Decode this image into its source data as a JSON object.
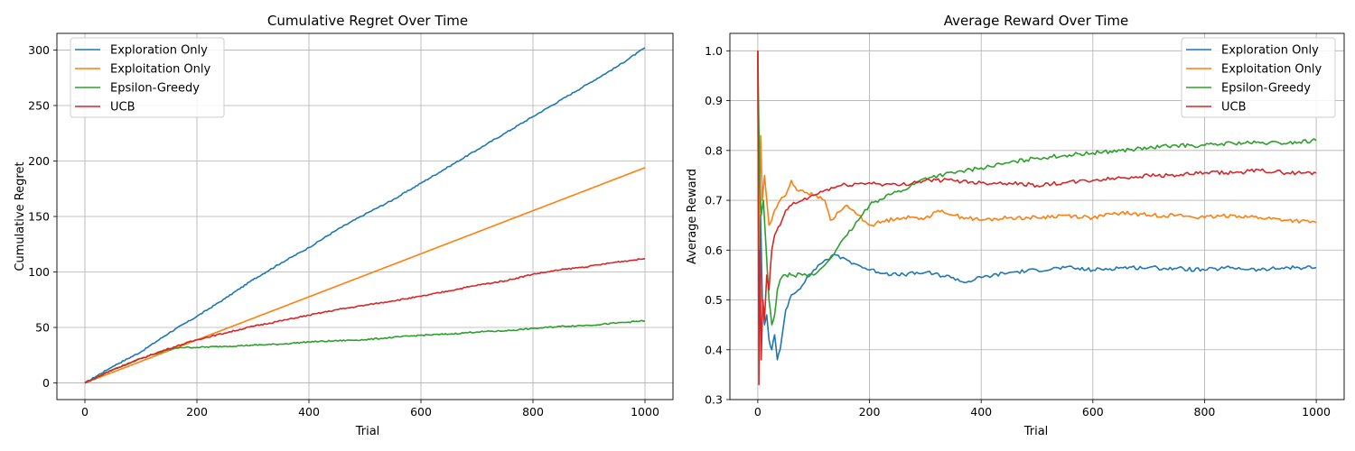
{
  "chart_data": [
    {
      "type": "line",
      "title": "Cumulative Regret Over Time",
      "xlabel": "Trial",
      "ylabel": "Cumulative Regret",
      "xlim": [
        -50,
        1050
      ],
      "ylim": [
        -15,
        315
      ],
      "xticks": [
        0,
        200,
        400,
        600,
        800,
        1000
      ],
      "yticks": [
        0,
        50,
        100,
        150,
        200,
        250,
        300
      ],
      "grid": true,
      "legend_loc": "upper left",
      "noise": 0,
      "series": [
        {
          "name": "Exploration Only",
          "color": "#1f77b4",
          "x": [
            0,
            50,
            100,
            150,
            200,
            250,
            300,
            350,
            400,
            450,
            500,
            550,
            600,
            650,
            700,
            750,
            800,
            850,
            900,
            950,
            1000
          ],
          "y": [
            0,
            15,
            28,
            45,
            60,
            76,
            93,
            108,
            122,
            138,
            152,
            165,
            180,
            195,
            210,
            225,
            240,
            255,
            270,
            285,
            302
          ]
        },
        {
          "name": "Exploitation Only",
          "color": "#ff7f0e",
          "x": [
            0,
            1000
          ],
          "y": [
            0,
            194
          ]
        },
        {
          "name": "Epsilon-Greedy",
          "color": "#2ca02c",
          "x": [
            0,
            50,
            100,
            150,
            170,
            200,
            250,
            300,
            350,
            400,
            450,
            500,
            550,
            600,
            650,
            700,
            750,
            800,
            850,
            900,
            950,
            1000
          ],
          "y": [
            0,
            12,
            22,
            30,
            32,
            32,
            33,
            34,
            35,
            37,
            38,
            39,
            41,
            43,
            44,
            46,
            47,
            49,
            51,
            52,
            54,
            56
          ]
        },
        {
          "name": "UCB",
          "color": "#d62728",
          "x": [
            0,
            50,
            100,
            150,
            200,
            250,
            300,
            350,
            400,
            450,
            500,
            550,
            600,
            650,
            700,
            750,
            800,
            850,
            900,
            950,
            1000
          ],
          "y": [
            0,
            12,
            22,
            31,
            39,
            45,
            51,
            56,
            61,
            66,
            70,
            74,
            78,
            83,
            88,
            92,
            98,
            102,
            105,
            109,
            112
          ]
        }
      ]
    },
    {
      "type": "line",
      "title": "Average Reward Over Time",
      "xlabel": "Trial",
      "ylabel": "Average Reward",
      "xlim": [
        -50,
        1050
      ],
      "ylim": [
        0.3,
        1.035
      ],
      "xticks": [
        0,
        200,
        400,
        600,
        800,
        1000
      ],
      "yticks": [
        0.3,
        0.4,
        0.5,
        0.6,
        0.7,
        0.8,
        0.9,
        1.0
      ],
      "ytick_labels": [
        "0.3",
        "0.4",
        "0.5",
        "0.6",
        "0.7",
        "0.8",
        "0.9",
        "1.0"
      ],
      "grid": true,
      "legend_loc": "upper right",
      "noise": 0.004,
      "series": [
        {
          "name": "Exploration Only",
          "color": "#1f77b4",
          "x": [
            0,
            2,
            5,
            8,
            12,
            16,
            20,
            25,
            30,
            35,
            40,
            50,
            60,
            80,
            100,
            120,
            140,
            160,
            180,
            200,
            250,
            300,
            350,
            370,
            400,
            450,
            500,
            550,
            600,
            650,
            700,
            750,
            800,
            850,
            900,
            950,
            1000
          ],
          "y": [
            1.0,
            0.5,
            0.67,
            0.5,
            0.45,
            0.47,
            0.42,
            0.4,
            0.43,
            0.38,
            0.4,
            0.48,
            0.51,
            0.53,
            0.56,
            0.58,
            0.59,
            0.58,
            0.57,
            0.56,
            0.55,
            0.555,
            0.545,
            0.535,
            0.545,
            0.555,
            0.56,
            0.565,
            0.56,
            0.565,
            0.565,
            0.563,
            0.56,
            0.565,
            0.56,
            0.565,
            0.565
          ]
        },
        {
          "name": "Exploitation Only",
          "color": "#ff7f0e",
          "x": [
            0,
            2,
            5,
            8,
            12,
            16,
            20,
            25,
            30,
            40,
            50,
            60,
            70,
            80,
            100,
            120,
            130,
            150,
            160,
            180,
            200,
            250,
            300,
            330,
            350,
            400,
            450,
            500,
            550,
            600,
            650,
            700,
            750,
            800,
            850,
            900,
            950,
            1000
          ],
          "y": [
            1.0,
            0.6,
            0.83,
            0.7,
            0.75,
            0.7,
            0.65,
            0.66,
            0.68,
            0.7,
            0.71,
            0.74,
            0.72,
            0.72,
            0.71,
            0.7,
            0.66,
            0.68,
            0.69,
            0.67,
            0.65,
            0.665,
            0.665,
            0.68,
            0.67,
            0.66,
            0.665,
            0.665,
            0.67,
            0.665,
            0.675,
            0.67,
            0.67,
            0.665,
            0.67,
            0.665,
            0.66,
            0.655
          ]
        },
        {
          "name": "Epsilon-Greedy",
          "color": "#2ca02c",
          "x": [
            0,
            3,
            6,
            10,
            15,
            20,
            25,
            30,
            35,
            40,
            50,
            60,
            80,
            100,
            120,
            140,
            160,
            180,
            200,
            230,
            260,
            300,
            350,
            400,
            450,
            500,
            550,
            600,
            650,
            700,
            750,
            800,
            850,
            900,
            950,
            1000
          ],
          "y": [
            1.0,
            0.75,
            0.67,
            0.7,
            0.6,
            0.5,
            0.45,
            0.47,
            0.52,
            0.54,
            0.55,
            0.55,
            0.55,
            0.55,
            0.57,
            0.6,
            0.63,
            0.66,
            0.69,
            0.71,
            0.72,
            0.745,
            0.755,
            0.765,
            0.775,
            0.785,
            0.79,
            0.795,
            0.8,
            0.805,
            0.81,
            0.81,
            0.815,
            0.815,
            0.815,
            0.82
          ]
        },
        {
          "name": "UCB",
          "color": "#d62728",
          "x": [
            0,
            2,
            4,
            6,
            9,
            12,
            16,
            20,
            25,
            30,
            40,
            50,
            60,
            80,
            100,
            120,
            150,
            200,
            250,
            300,
            350,
            400,
            450,
            500,
            550,
            600,
            650,
            700,
            750,
            800,
            850,
            900,
            950,
            1000
          ],
          "y": [
            1.0,
            0.33,
            0.6,
            0.38,
            0.5,
            0.46,
            0.55,
            0.52,
            0.6,
            0.63,
            0.65,
            0.68,
            0.69,
            0.7,
            0.71,
            0.72,
            0.73,
            0.735,
            0.73,
            0.74,
            0.74,
            0.735,
            0.735,
            0.73,
            0.735,
            0.74,
            0.745,
            0.75,
            0.75,
            0.755,
            0.755,
            0.76,
            0.755,
            0.755
          ]
        }
      ]
    }
  ]
}
